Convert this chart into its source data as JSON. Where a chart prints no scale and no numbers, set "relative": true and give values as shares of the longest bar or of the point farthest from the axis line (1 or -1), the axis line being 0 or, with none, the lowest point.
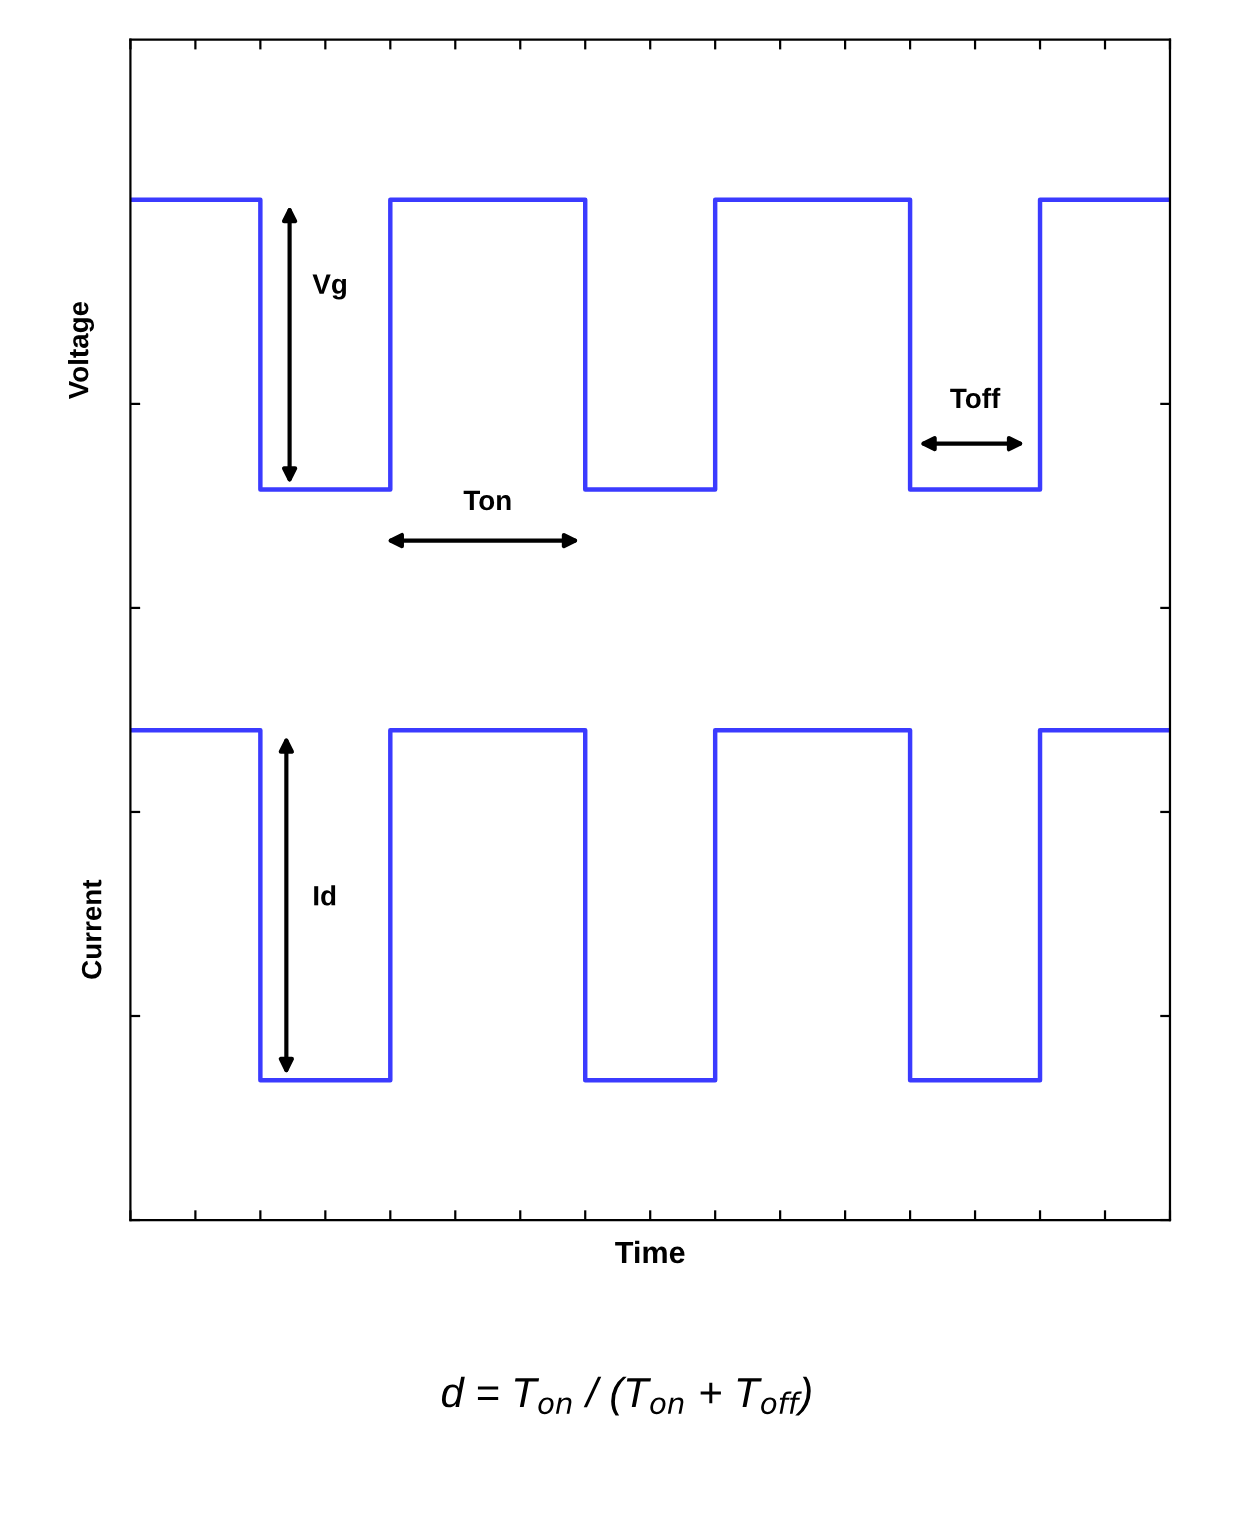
{
  "chart_data": {
    "type": "step",
    "relative": true,
    "xlabel": "Time",
    "ylabel": "Voltage",
    "categories": [
      null,
      null,
      null,
      null,
      null,
      null,
      null,
      null,
      null,
      null,
      null,
      null,
      null,
      null,
      null,
      null,
      null
    ],
    "series": [
      {
        "color": "#3b3bff",
        "values": [
          1,
          1,
          0.716,
          0.716,
          1,
          1,
          1,
          0.716,
          0.716,
          1,
          1,
          1,
          0.716,
          0.716,
          1,
          1,
          1
        ]
      },
      {
        "color": "#3b3bff",
        "values": [
          0.48,
          0.48,
          0.137,
          0.137,
          0.48,
          0.48,
          0.48,
          0.137,
          0.137,
          0.48,
          0.48,
          0.48,
          0.137,
          0.137,
          0.48,
          0.48,
          0.48
        ]
      }
    ],
    "annotations": [
      "Vg",
      "Ton",
      "Toff",
      "Id",
      "Current",
      "d = T$_{on}$ / (T$_{on}$ + T$_{off}$)"
    ],
    "grid": false,
    "legend": false
  }
}
